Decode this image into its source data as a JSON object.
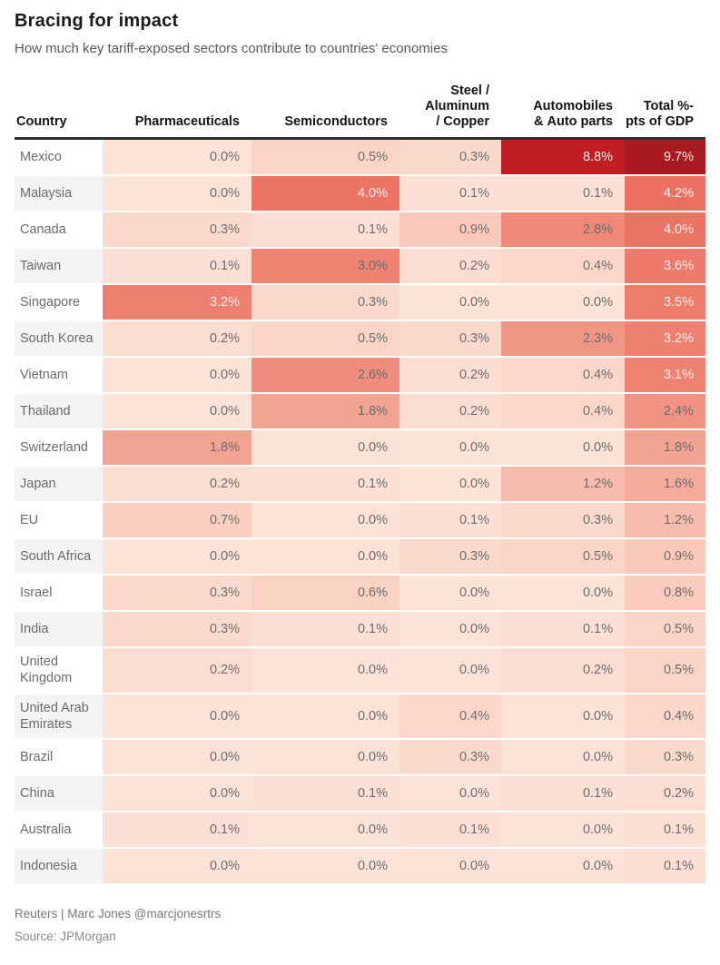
{
  "page": {
    "title": "Bracing for impact",
    "subtitle": "How much key tariff-exposed sectors contribute to countries' economies"
  },
  "chart_data": {
    "type": "heatmap",
    "unit": "%",
    "columns": [
      "Country",
      "Pharmaceuticals",
      "Semiconductors",
      "Steel / Aluminum / Copper",
      "Automobiles & Auto parts",
      "Total %-pts of GDP"
    ],
    "rows": [
      {
        "country": "Mexico",
        "values": [
          0.0,
          0.5,
          0.3,
          8.8,
          9.7
        ]
      },
      {
        "country": "Malaysia",
        "values": [
          0.0,
          4.0,
          0.1,
          0.1,
          4.2
        ]
      },
      {
        "country": "Canada",
        "values": [
          0.3,
          0.1,
          0.9,
          2.8,
          4.0
        ]
      },
      {
        "country": "Taiwan",
        "values": [
          0.1,
          3.0,
          0.2,
          0.4,
          3.6
        ]
      },
      {
        "country": "Singapore",
        "values": [
          3.2,
          0.3,
          0.0,
          0.0,
          3.5
        ]
      },
      {
        "country": "South Korea",
        "values": [
          0.2,
          0.5,
          0.3,
          2.3,
          3.2
        ]
      },
      {
        "country": "Vietnam",
        "values": [
          0.0,
          2.6,
          0.2,
          0.4,
          3.1
        ]
      },
      {
        "country": "Thailand",
        "values": [
          0.0,
          1.8,
          0.2,
          0.4,
          2.4
        ]
      },
      {
        "country": "Switzerland",
        "values": [
          1.8,
          0.0,
          0.0,
          0.0,
          1.8
        ]
      },
      {
        "country": "Japan",
        "values": [
          0.2,
          0.1,
          0.0,
          1.2,
          1.6
        ]
      },
      {
        "country": "EU",
        "values": [
          0.7,
          0.0,
          0.1,
          0.3,
          1.2
        ]
      },
      {
        "country": "South Africa",
        "values": [
          0.0,
          0.0,
          0.3,
          0.5,
          0.9
        ]
      },
      {
        "country": "Israel",
        "values": [
          0.3,
          0.6,
          0.0,
          0.0,
          0.8
        ]
      },
      {
        "country": "India",
        "values": [
          0.3,
          0.1,
          0.0,
          0.1,
          0.5
        ]
      },
      {
        "country": "United Kingdom",
        "values": [
          0.2,
          0.0,
          0.0,
          0.2,
          0.5
        ]
      },
      {
        "country": "United Arab Emirates",
        "values": [
          0.0,
          0.0,
          0.4,
          0.0,
          0.4
        ]
      },
      {
        "country": "Brazil",
        "values": [
          0.0,
          0.0,
          0.3,
          0.0,
          0.3
        ]
      },
      {
        "country": "China",
        "values": [
          0.0,
          0.1,
          0.0,
          0.1,
          0.2
        ]
      },
      {
        "country": "Australia",
        "values": [
          0.1,
          0.0,
          0.1,
          0.0,
          0.1
        ]
      },
      {
        "country": "Indonesia",
        "values": [
          0.0,
          0.0,
          0.0,
          0.0,
          0.1
        ]
      }
    ],
    "color_scale": {
      "stops": [
        [
          0.0,
          "#fce3d8"
        ],
        [
          0.9,
          "#f9c9ba"
        ],
        [
          1.8,
          "#f2a392"
        ],
        [
          3.0,
          "#ee8371"
        ],
        [
          4.2,
          "#ec7163"
        ],
        [
          8.8,
          "#c11e24"
        ],
        [
          9.7,
          "#a91920"
        ]
      ],
      "light_text_threshold": 3.1,
      "light_text_color": "#fdf1ee",
      "dark_text_color": "#6d6d6d"
    }
  },
  "footer": {
    "credit": "Reuters | Marc Jones @marcjonesrtrs",
    "source": "Source: JPMorgan"
  }
}
